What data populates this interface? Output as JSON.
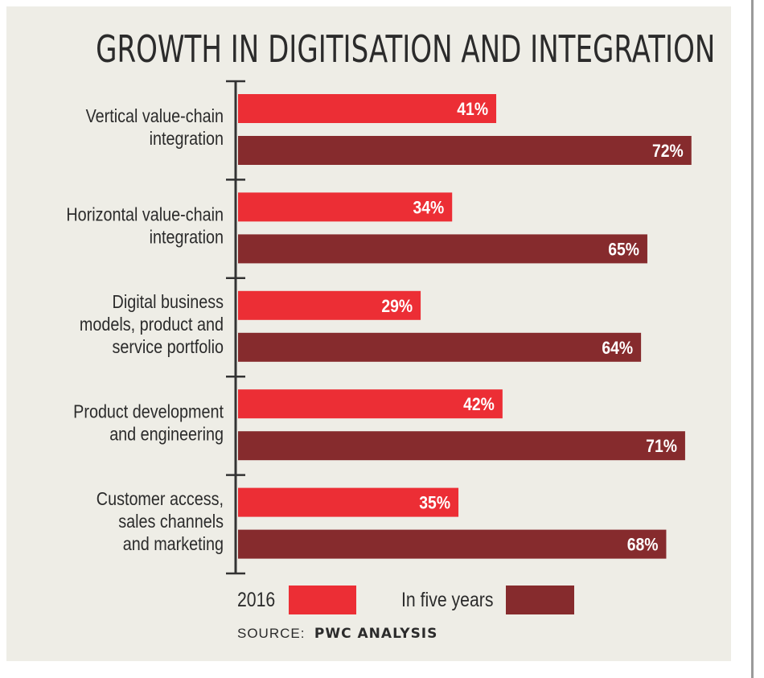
{
  "chart_data": {
    "type": "bar",
    "orientation": "horizontal",
    "title": "GROWTH IN DIGITISATION AND INTEGRATION",
    "categories": [
      [
        "Vertical value-chain",
        "integration"
      ],
      [
        "Horizontal value-chain",
        "integration"
      ],
      [
        "Digital business",
        "models, product and",
        "service portfolio"
      ],
      [
        "Product development",
        "and engineering"
      ],
      [
        "Customer access,",
        "sales channels",
        "and marketing"
      ]
    ],
    "series": [
      {
        "name": "2016",
        "color": "#ec2e35",
        "values": [
          41,
          34,
          29,
          42,
          35
        ]
      },
      {
        "name": "In five years",
        "color": "#862b2d",
        "values": [
          72,
          65,
          64,
          71,
          68
        ]
      }
    ],
    "value_suffix": "%",
    "xlim": [
      0,
      72
    ],
    "grid": false,
    "legend_position": "bottom",
    "source_prefix": "SOURCE:",
    "source_name": "PWC ANALYSIS"
  }
}
